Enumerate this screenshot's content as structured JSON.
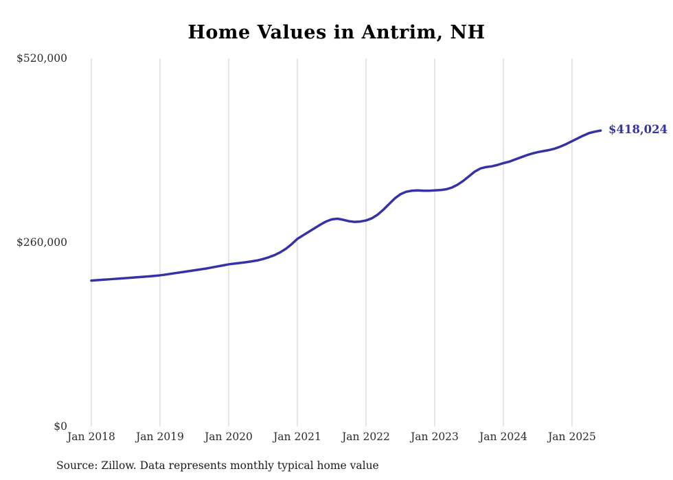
{
  "chart_data": {
    "type": "line",
    "title": "Home Values in Antrim, NH",
    "xlabel": "",
    "ylabel": "",
    "ylim": [
      0,
      520000
    ],
    "grid": "vertical-only",
    "x_tick_labels": [
      "Jan 2018",
      "Jan 2019",
      "Jan 2020",
      "Jan 2021",
      "Jan 2022",
      "Jan 2023",
      "Jan 2024",
      "Jan 2025"
    ],
    "y_ticks": [
      {
        "label": "$0",
        "value": 0
      },
      {
        "label": "$260,000",
        "value": 260000
      },
      {
        "label": "$520,000",
        "value": 520000
      }
    ],
    "points_start": "Jan 2018",
    "points_interval": "monthly",
    "series": [
      {
        "name": "Typical home value",
        "color": "#3531a8",
        "values": [
          206000,
          206600,
          207200,
          207800,
          208400,
          209000,
          209600,
          210200,
          210800,
          211400,
          212000,
          212700,
          213500,
          214600,
          215800,
          217000,
          218200,
          219400,
          220600,
          221800,
          223000,
          224500,
          226000,
          227500,
          229000,
          230000,
          231000,
          232000,
          233200,
          234500,
          236500,
          239000,
          242000,
          246000,
          251000,
          257500,
          265000,
          270000,
          275000,
          280000,
          285000,
          289500,
          292500,
          293500,
          292000,
          290000,
          289000,
          289500,
          291000,
          294000,
          299000,
          306000,
          314000,
          322000,
          328000,
          331500,
          333000,
          333500,
          333000,
          333000,
          333500,
          334000,
          335000,
          337500,
          341500,
          347000,
          353500,
          360000,
          364500,
          366500,
          367500,
          369500,
          372000,
          374000,
          377000,
          380000,
          383000,
          385500,
          387500,
          389000,
          390500,
          392500,
          395500,
          399000,
          403000,
          407000,
          411000,
          414500,
          416500,
          418024
        ]
      }
    ],
    "end_label": "$418,024",
    "source": "Source: Zillow. Data represents monthly typical home value",
    "gridline_color": "#cccccc"
  }
}
